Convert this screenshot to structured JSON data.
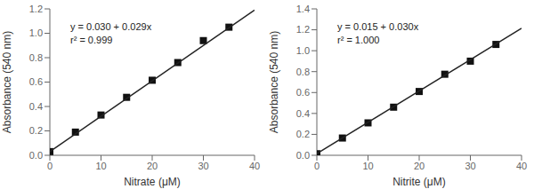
{
  "chart_data": [
    {
      "type": "scatter",
      "xlabel": "Nitrate (μM)",
      "ylabel": "Absorbance (540 nm)",
      "annotations": [
        "y = 0.030 + 0.029x",
        "r² = 0.999"
      ],
      "xlim": [
        0,
        40
      ],
      "ylim": [
        0,
        1.2
      ],
      "xticks": [
        0,
        10,
        20,
        30,
        40
      ],
      "yticks": [
        {
          "value": 0,
          "label": "0.0"
        },
        0.2,
        0.4,
        0.6,
        0.8,
        {
          "value": 1,
          "label": "1.0"
        },
        1.2
      ],
      "grid": false,
      "series": [
        {
          "type": "scatter",
          "color": "#111111",
          "marker": "square",
          "x": [
            0,
            5,
            10,
            15,
            20,
            25,
            30,
            35
          ],
          "values": [
            0.03,
            0.19,
            0.33,
            0.475,
            0.615,
            0.76,
            0.94,
            1.05
          ]
        },
        {
          "type": "line",
          "color": "#222222",
          "x": [
            0,
            40
          ],
          "values": [
            0.03,
            1.19
          ]
        }
      ]
    },
    {
      "type": "scatter",
      "xlabel": "Nitrite (μM)",
      "ylabel": "Absorbance (540 nm)",
      "annotations": [
        "y = 0.015 + 0.030x",
        "r² = 1.000"
      ],
      "xlim": [
        0,
        40
      ],
      "ylim": [
        0,
        1.4
      ],
      "xticks": [
        0,
        10,
        20,
        30,
        40
      ],
      "yticks": [
        {
          "value": 0,
          "label": "0.0"
        },
        0.2,
        0.4,
        0.6,
        0.8,
        {
          "value": 1,
          "label": "1.0"
        },
        1.2,
        1.4
      ],
      "grid": false,
      "series": [
        {
          "type": "scatter",
          "color": "#111111",
          "marker": "square",
          "x": [
            0,
            5,
            10,
            15,
            20,
            25,
            30,
            35
          ],
          "values": [
            0.015,
            0.165,
            0.31,
            0.46,
            0.61,
            0.775,
            0.9,
            1.06
          ]
        },
        {
          "type": "line",
          "color": "#222222",
          "x": [
            0,
            40
          ],
          "values": [
            0.015,
            1.215
          ]
        }
      ]
    }
  ]
}
